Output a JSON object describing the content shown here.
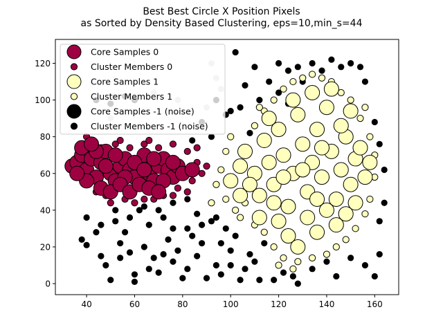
{
  "chart_data": {
    "type": "scatter",
    "title_line1": "Best Best Circle X Position Pixels",
    "title_line2": "as Sorted by Density Based Clustering, eps=10,min_s=44",
    "xlabel": "",
    "ylabel": "",
    "xlim": [
      27,
      170
    ],
    "ylim": [
      -6,
      133
    ],
    "x_ticks": [
      40,
      60,
      80,
      100,
      120,
      140,
      160
    ],
    "y_ticks": [
      0,
      20,
      40,
      60,
      80,
      100,
      120
    ],
    "grid": false,
    "legend_position": "top-left",
    "colors": {
      "cluster0": "#9e0142",
      "cluster1": "#ffffbe",
      "noise": "#000000",
      "edge": "#000000"
    },
    "legend": [
      {
        "label": "Core Samples 0",
        "color": "#9e0142",
        "marker": "large"
      },
      {
        "label": "Cluster Members 0",
        "color": "#9e0142",
        "marker": "small"
      },
      {
        "label": "Core Samples 1",
        "color": "#ffffbe",
        "marker": "large"
      },
      {
        "label": "Cluster Members 1",
        "color": "#ffffbe",
        "marker": "small"
      },
      {
        "label": "Core Samples -1 (noise)",
        "color": "#000000",
        "marker": "large"
      },
      {
        "label": "Cluster Members -1 (noise)",
        "color": "#000000",
        "marker": "small"
      }
    ],
    "series": [
      {
        "cluster": 0,
        "kind": "core",
        "points": [
          [
            34,
            64
          ],
          [
            36,
            66
          ],
          [
            38,
            70
          ],
          [
            40,
            62
          ],
          [
            42,
            68
          ],
          [
            44,
            58
          ],
          [
            46,
            66
          ],
          [
            48,
            72
          ],
          [
            50,
            60
          ],
          [
            52,
            56
          ],
          [
            54,
            64
          ],
          [
            56,
            68
          ],
          [
            58,
            62
          ],
          [
            60,
            58
          ],
          [
            62,
            66
          ],
          [
            64,
            70
          ],
          [
            66,
            60
          ],
          [
            68,
            56
          ],
          [
            70,
            64
          ],
          [
            72,
            68
          ],
          [
            74,
            62
          ],
          [
            76,
            58
          ],
          [
            78,
            64
          ],
          [
            80,
            60
          ],
          [
            38,
            74
          ],
          [
            40,
            56
          ],
          [
            44,
            72
          ],
          [
            48,
            64
          ],
          [
            52,
            70
          ],
          [
            56,
            58
          ],
          [
            60,
            66
          ],
          [
            64,
            62
          ],
          [
            68,
            68
          ],
          [
            72,
            56
          ],
          [
            76,
            66
          ],
          [
            46,
            52
          ],
          [
            50,
            50
          ],
          [
            54,
            54
          ],
          [
            58,
            50
          ],
          [
            62,
            54
          ],
          [
            66,
            52
          ],
          [
            70,
            50
          ],
          [
            36,
            60
          ],
          [
            42,
            76
          ],
          [
            84,
            62
          ]
        ]
      },
      {
        "cluster": 0,
        "kind": "member",
        "points": [
          [
            40,
            80
          ],
          [
            46,
            74
          ],
          [
            52,
            76
          ],
          [
            58,
            74
          ],
          [
            64,
            76
          ],
          [
            70,
            74
          ],
          [
            76,
            76
          ],
          [
            82,
            72
          ],
          [
            86,
            66
          ],
          [
            88,
            60
          ],
          [
            84,
            56
          ],
          [
            78,
            52
          ],
          [
            72,
            48
          ],
          [
            64,
            46
          ],
          [
            56,
            46
          ],
          [
            48,
            48
          ],
          [
            44,
            50
          ],
          [
            50,
            44
          ],
          [
            60,
            44
          ],
          [
            68,
            46
          ],
          [
            76,
            48
          ],
          [
            82,
            50
          ],
          [
            90,
            64
          ],
          [
            86,
            74
          ],
          [
            66,
            78
          ],
          [
            54,
            78
          ]
        ]
      },
      {
        "cluster": 1,
        "kind": "core",
        "points": [
          [
            100,
            56
          ],
          [
            104,
            64
          ],
          [
            106,
            72
          ],
          [
            110,
            60
          ],
          [
            112,
            48
          ],
          [
            114,
            78
          ],
          [
            116,
            66
          ],
          [
            118,
            54
          ],
          [
            120,
            84
          ],
          [
            122,
            70
          ],
          [
            124,
            42
          ],
          [
            126,
            60
          ],
          [
            128,
            92
          ],
          [
            130,
            76
          ],
          [
            132,
            50
          ],
          [
            134,
            66
          ],
          [
            136,
            84
          ],
          [
            138,
            58
          ],
          [
            140,
            96
          ],
          [
            142,
            72
          ],
          [
            144,
            46
          ],
          [
            146,
            62
          ],
          [
            148,
            80
          ],
          [
            150,
            54
          ],
          [
            152,
            68
          ],
          [
            154,
            74
          ],
          [
            156,
            58
          ],
          [
            158,
            66
          ],
          [
            120,
            34
          ],
          [
            124,
            26
          ],
          [
            128,
            20
          ],
          [
            132,
            36
          ],
          [
            136,
            28
          ],
          [
            140,
            40
          ],
          [
            144,
            32
          ],
          [
            148,
            38
          ],
          [
            152,
            44
          ],
          [
            116,
            90
          ],
          [
            126,
            100
          ],
          [
            134,
            104
          ],
          [
            142,
            106
          ],
          [
            150,
            94
          ],
          [
            146,
            86
          ],
          [
            108,
            54
          ],
          [
            104,
            48
          ],
          [
            112,
            36
          ],
          [
            118,
            44
          ],
          [
            122,
            58
          ],
          [
            130,
            62
          ],
          [
            138,
            74
          ],
          [
            136,
            46
          ]
        ]
      },
      {
        "cluster": 1,
        "kind": "member",
        "points": [
          [
            92,
            44
          ],
          [
            94,
            54
          ],
          [
            96,
            62
          ],
          [
            98,
            72
          ],
          [
            100,
            80
          ],
          [
            102,
            40
          ],
          [
            106,
            44
          ],
          [
            110,
            86
          ],
          [
            114,
            94
          ],
          [
            118,
            100
          ],
          [
            122,
            106
          ],
          [
            126,
            110
          ],
          [
            130,
            112
          ],
          [
            134,
            114
          ],
          [
            138,
            112
          ],
          [
            142,
            110
          ],
          [
            146,
            104
          ],
          [
            150,
            100
          ],
          [
            154,
            90
          ],
          [
            158,
            80
          ],
          [
            160,
            70
          ],
          [
            160,
            58
          ],
          [
            158,
            46
          ],
          [
            156,
            38
          ],
          [
            152,
            30
          ],
          [
            148,
            24
          ],
          [
            144,
            20
          ],
          [
            140,
            16
          ],
          [
            134,
            14
          ],
          [
            128,
            12
          ],
          [
            122,
            14
          ],
          [
            118,
            20
          ],
          [
            114,
            28
          ],
          [
            110,
            32
          ],
          [
            104,
            36
          ],
          [
            98,
            46
          ],
          [
            120,
            10
          ],
          [
            126,
            8
          ],
          [
            112,
            96
          ],
          [
            156,
            96
          ]
        ]
      },
      {
        "cluster": -1,
        "kind": "member",
        "points": [
          [
            38,
            24
          ],
          [
            40,
            21
          ],
          [
            44,
            28
          ],
          [
            46,
            15
          ],
          [
            48,
            10
          ],
          [
            50,
            2
          ],
          [
            52,
            34
          ],
          [
            54,
            22
          ],
          [
            56,
            28
          ],
          [
            58,
            17
          ],
          [
            60,
            1
          ],
          [
            62,
            40
          ],
          [
            64,
            20
          ],
          [
            66,
            32
          ],
          [
            68,
            14
          ],
          [
            70,
            6
          ],
          [
            72,
            36
          ],
          [
            74,
            24
          ],
          [
            76,
            30
          ],
          [
            78,
            18
          ],
          [
            80,
            3
          ],
          [
            82,
            8
          ],
          [
            84,
            26
          ],
          [
            86,
            15
          ],
          [
            88,
            22
          ],
          [
            90,
            3
          ],
          [
            92,
            34
          ],
          [
            94,
            10
          ],
          [
            96,
            5
          ],
          [
            98,
            30
          ],
          [
            100,
            18
          ],
          [
            102,
            26
          ],
          [
            104,
            2
          ],
          [
            106,
            8
          ],
          [
            108,
            16
          ],
          [
            110,
            12
          ],
          [
            112,
            2
          ],
          [
            114,
            22
          ],
          [
            118,
            2
          ],
          [
            122,
            6
          ],
          [
            126,
            4
          ],
          [
            128,
            0
          ],
          [
            134,
            8
          ],
          [
            140,
            12
          ],
          [
            144,
            4
          ],
          [
            150,
            14
          ],
          [
            156,
            10
          ],
          [
            160,
            4
          ],
          [
            162,
            16
          ],
          [
            40,
            36
          ],
          [
            46,
            32
          ],
          [
            52,
            40
          ],
          [
            58,
            36
          ],
          [
            64,
            42
          ],
          [
            70,
            40
          ],
          [
            76,
            44
          ],
          [
            82,
            46
          ],
          [
            86,
            38
          ],
          [
            102,
            126
          ],
          [
            106,
            108
          ],
          [
            110,
            118
          ],
          [
            112,
            100
          ],
          [
            116,
            110
          ],
          [
            120,
            104
          ],
          [
            124,
            116
          ],
          [
            128,
            118
          ],
          [
            130,
            110
          ],
          [
            134,
            120
          ],
          [
            138,
            116
          ],
          [
            142,
            122
          ],
          [
            146,
            118
          ],
          [
            150,
            120
          ],
          [
            154,
            118
          ],
          [
            156,
            110
          ],
          [
            160,
            88
          ],
          [
            162,
            76
          ],
          [
            164,
            62
          ],
          [
            164,
            44
          ],
          [
            162,
            34
          ],
          [
            94,
            100
          ],
          [
            98,
            92
          ],
          [
            104,
            96
          ],
          [
            108,
            82
          ],
          [
            88,
            88
          ],
          [
            84,
            78
          ],
          [
            92,
            80
          ],
          [
            60,
            100
          ],
          [
            56,
            102
          ],
          [
            50,
            98
          ],
          [
            44,
            100
          ],
          [
            82,
            30
          ],
          [
            76,
            12
          ],
          [
            66,
            8
          ],
          [
            60,
            5
          ],
          [
            54,
            14
          ],
          [
            72,
            16
          ],
          [
            96,
            22
          ],
          [
            100,
            10
          ],
          [
            88,
            32
          ],
          [
            94,
            36
          ],
          [
            100,
            94
          ],
          [
            120,
            120
          ],
          [
            124,
            98
          ],
          [
            140,
            98
          ]
        ]
      },
      {
        "cluster": -1,
        "kind": "grey",
        "points": [
          [
            50,
            90
          ],
          [
            52,
            102
          ],
          [
            92,
            120
          ],
          [
            94,
            112
          ],
          [
            96,
            106
          ],
          [
            90,
            96
          ],
          [
            78,
            100
          ],
          [
            68,
            104
          ]
        ]
      }
    ]
  }
}
